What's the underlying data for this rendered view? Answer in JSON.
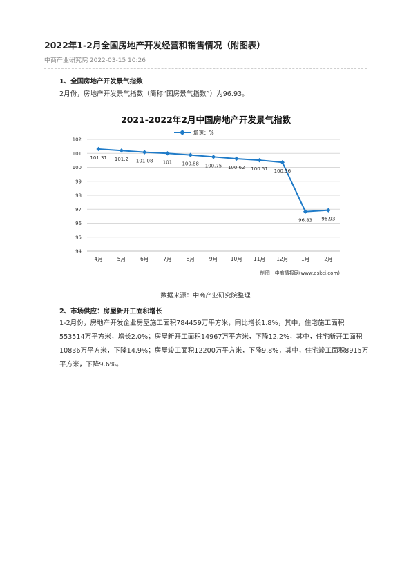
{
  "article": {
    "title": "2022年1-2月全国房地产开发经营和销售情况（附图表）",
    "meta": "中商产业研究院 2022-03-15 10:26"
  },
  "section1": {
    "heading": "1、全国房地产开发景气指数",
    "paragraph": "2月份，房地产开发景气指数（简称“国房景气指数”）为96.93。"
  },
  "chart_caption": "数据来源：中商产业研究院整理",
  "section2": {
    "heading": "2、市场供应：房屋新开工面积增长",
    "paragraph": "1-2月份，房地产开发企业房屋施工面积784459万平方米，同比增长1.8%，其中，住宅施工面积553514万平方米，增长2.0%；房屋新开工面积14967万平方米，下降12.2%，其中，住宅新开工面积10836万平方米，下降14.9%；房屋竣工面积12200万平方米，下降9.8%，其中，住宅竣工面积8915万平方米，下降9.6%。"
  },
  "chart_data": {
    "type": "line",
    "title": "2021-2022年2月中国房地产开发景气指数",
    "legend_label": "增速：%",
    "legend_position": "top-center",
    "categories": [
      "4月",
      "5月",
      "6月",
      "7月",
      "8月",
      "9月",
      "10月",
      "11月",
      "12月",
      "1月",
      "2月"
    ],
    "series": [
      {
        "name": "增速：%",
        "values": [
          101.31,
          101.2,
          101.08,
          101,
          100.88,
          100.75,
          100.62,
          100.51,
          100.36,
          96.83,
          96.93
        ]
      }
    ],
    "value_labels": [
      "101.31",
      "101.2",
      "101.08",
      "101",
      "100.88",
      "100.75",
      "100.62",
      "100.51",
      "100.36",
      "96.83",
      "96.93"
    ],
    "ylim": [
      94,
      102
    ],
    "yticks": [
      94,
      95,
      96,
      97,
      98,
      99,
      100,
      101,
      102
    ],
    "grid": true,
    "color": "#1f7bc8",
    "footer": "制图：中商情报网(www.askci.com)"
  }
}
